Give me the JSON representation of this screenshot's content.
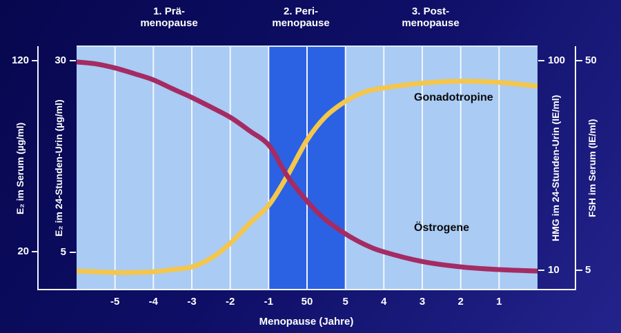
{
  "phases": [
    {
      "line1": "1. Prä-",
      "line2": "menopause"
    },
    {
      "line1": "2. Peri-",
      "line2": "menopause"
    },
    {
      "line1": "3. Post-",
      "line2": "menopause"
    }
  ],
  "axes": {
    "left_outer": {
      "label": "E₂ im Serum (µg/ml)",
      "tick_top": "120",
      "tick_bottom": "20"
    },
    "left_inner": {
      "label": "E₂ im 24-Stunden-Urin (µg/ml)",
      "tick_top": "30",
      "tick_bottom": "5"
    },
    "right_inner": {
      "label": "HMG im 24-Stunden-Urin (IE/ml)",
      "tick_top": "100",
      "tick_bottom": "10"
    },
    "right_outer": {
      "label": "FSH im Serum (IE/ml)",
      "tick_top": "50",
      "tick_bottom": "5"
    },
    "x": {
      "label": "Menopause (Jahre)",
      "ticks": [
        "-5",
        "-4",
        "-3",
        "-2",
        "-1",
        "50",
        "5",
        "4",
        "3",
        "2",
        "1"
      ]
    }
  },
  "colors": {
    "background_top": "#07074f",
    "background_bottom": "#23238c",
    "plot_fill": "#a9cbf4",
    "peri_band": "#2b62e4",
    "gridline": "#f2f6fd",
    "axis_text": "#ffffff",
    "gonadotropine": "#f4c64c",
    "oestrogene": "#a52b63",
    "curve_label_text": "#0a0a0a"
  },
  "chart_data": {
    "type": "line",
    "title": "",
    "xlabel": "Menopause (Jahre)",
    "x_tick_labels": [
      "-5",
      "-4",
      "-3",
      "-2",
      "-1",
      "50",
      "5",
      "4",
      "3",
      "2",
      "1"
    ],
    "grid": true,
    "y_axes": [
      {
        "side": "left-outer",
        "label": "E₂ im Serum (µg/ml)",
        "tick_values": [
          120,
          20
        ]
      },
      {
        "side": "left-inner",
        "label": "E₂ im 24-Stunden-Urin (µg/ml)",
        "tick_values": [
          30,
          5
        ]
      },
      {
        "side": "right-inner",
        "label": "HMG im 24-Stunden-Urin (IE/ml)",
        "tick_values": [
          100,
          10
        ]
      },
      {
        "side": "right-outer",
        "label": "FSH im Serum (IE/ml)",
        "tick_values": [
          50,
          5
        ]
      }
    ],
    "band": {
      "name": "Peri-menopause",
      "start_frac": 0.4167,
      "end_frac": 0.5833,
      "color": "#2b62e4"
    },
    "coords_note": "points are [x,y] fractions of the plot area, y measured downward from top",
    "series": [
      {
        "id": "gonadotropine",
        "name": "Gonadotropine",
        "color": "#f4c64c",
        "reading": "low before menopause (HMG ≈10 IE/ml, FSH ≈5 IE/ml), steep sigmoid rise in peri-menopause, plateau near HMG ≈100 IE/ml / FSH ≈50 IE/ml post-menopause with slight late decline",
        "points": [
          [
            0.0,
            0.921
          ],
          [
            0.042,
            0.924
          ],
          [
            0.084,
            0.927
          ],
          [
            0.125,
            0.927
          ],
          [
            0.166,
            0.924
          ],
          [
            0.208,
            0.915
          ],
          [
            0.25,
            0.904
          ],
          [
            0.292,
            0.868
          ],
          [
            0.334,
            0.806
          ],
          [
            0.376,
            0.724
          ],
          [
            0.418,
            0.648
          ],
          [
            0.457,
            0.53
          ],
          [
            0.5,
            0.383
          ],
          [
            0.54,
            0.287
          ],
          [
            0.584,
            0.223
          ],
          [
            0.624,
            0.186
          ],
          [
            0.666,
            0.169
          ],
          [
            0.75,
            0.149
          ],
          [
            0.834,
            0.141
          ],
          [
            0.916,
            0.146
          ],
          [
            1.0,
            0.161
          ]
        ]
      },
      {
        "id": "oestrogene",
        "name": "Östrogene",
        "color": "#a52b63",
        "reading": "high before menopause (E₂ Serum ≈120 µg/ml, E₂ Urin ≈30 µg/ml), sigmoid fall through peri-menopause, low plateau post-menopause near the lower axis values",
        "points": [
          [
            0.0,
            0.062
          ],
          [
            0.042,
            0.07
          ],
          [
            0.084,
            0.087
          ],
          [
            0.125,
            0.11
          ],
          [
            0.166,
            0.135
          ],
          [
            0.208,
            0.172
          ],
          [
            0.25,
            0.208
          ],
          [
            0.292,
            0.248
          ],
          [
            0.334,
            0.29
          ],
          [
            0.376,
            0.346
          ],
          [
            0.418,
            0.406
          ],
          [
            0.457,
            0.53
          ],
          [
            0.5,
            0.634
          ],
          [
            0.54,
            0.71
          ],
          [
            0.584,
            0.769
          ],
          [
            0.624,
            0.811
          ],
          [
            0.666,
            0.842
          ],
          [
            0.75,
            0.882
          ],
          [
            0.834,
            0.904
          ],
          [
            0.916,
            0.915
          ],
          [
            1.0,
            0.921
          ]
        ]
      }
    ]
  }
}
